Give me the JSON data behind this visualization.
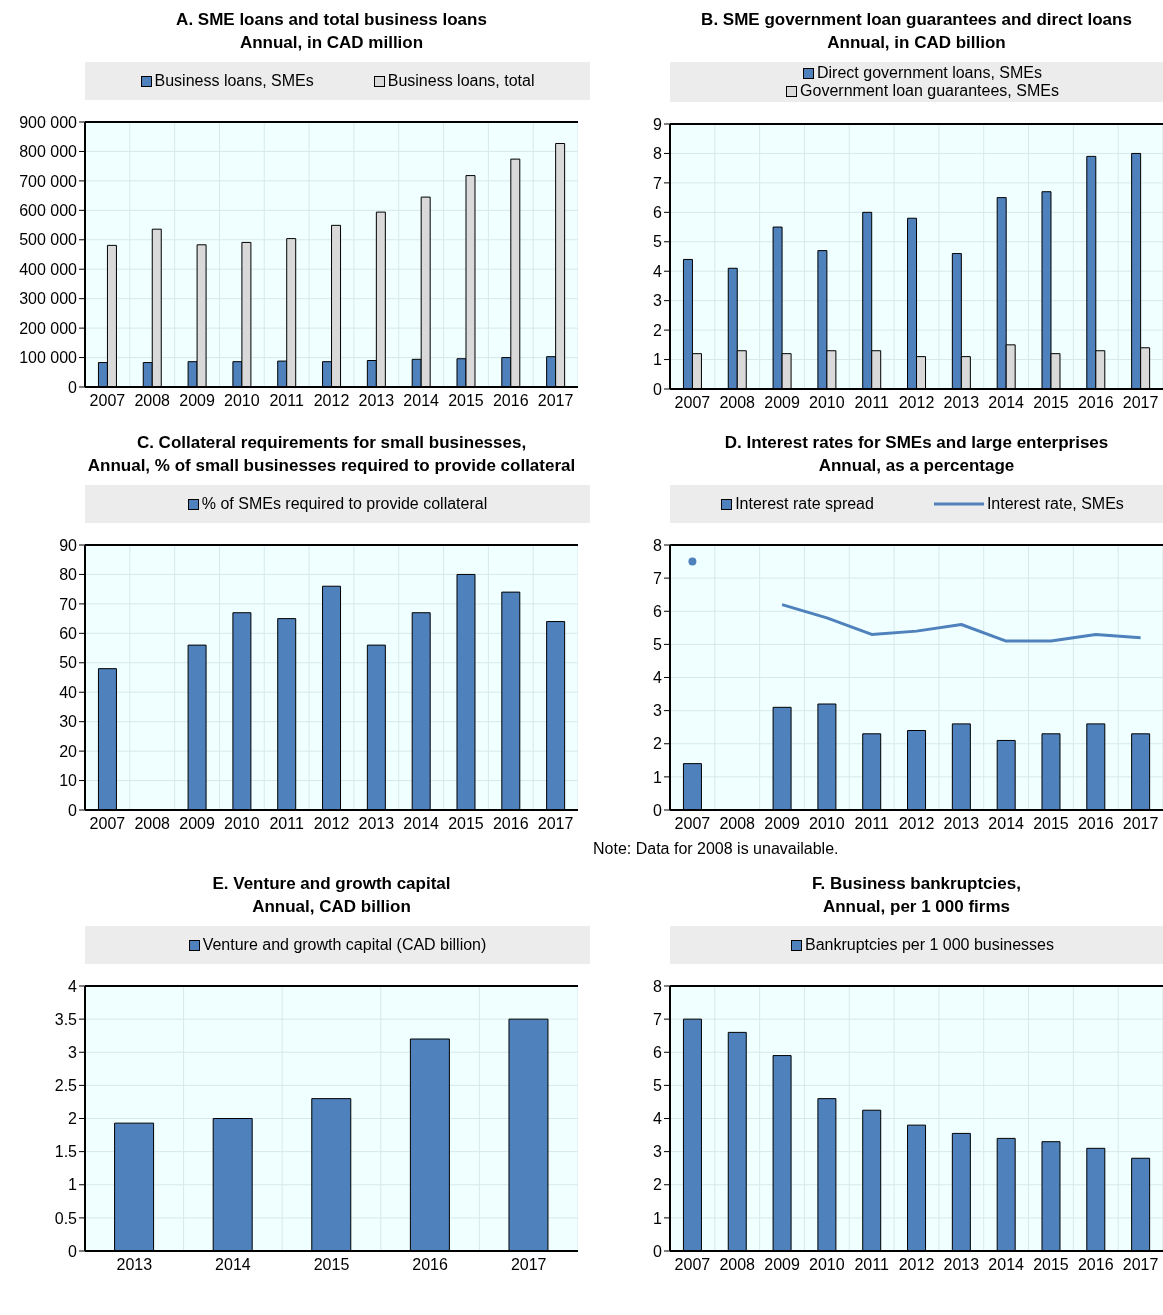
{
  "chart_data": [
    {
      "type": "bar",
      "title": "A. SME loans and total business loans",
      "subtitle": "Annual, in CAD million",
      "categories": [
        "2007",
        "2008",
        "2009",
        "2010",
        "2011",
        "2012",
        "2013",
        "2014",
        "2015",
        "2016",
        "2017"
      ],
      "series": [
        {
          "name": "Business loans, SMEs",
          "color": "#4f81bd",
          "values": [
            83000,
            83000,
            86000,
            86000,
            88000,
            86000,
            90000,
            94000,
            96000,
            100000,
            103000
          ]
        },
        {
          "name": "Business loans, total",
          "color": "#d9d9d9",
          "values": [
            481000,
            536000,
            483000,
            491000,
            504000,
            549000,
            594000,
            645000,
            718000,
            774000,
            827000
          ]
        }
      ],
      "ylim": [
        0,
        900000
      ],
      "yticks": [
        0,
        {
          "value": 100000,
          "label": "100 000"
        },
        {
          "value": 200000,
          "label": "200 000"
        },
        {
          "value": 300000,
          "label": "300 000"
        },
        {
          "value": 400000,
          "label": "400 000"
        },
        {
          "value": 500000,
          "label": "500 000"
        },
        {
          "value": 600000,
          "label": "600 000"
        },
        {
          "value": 700000,
          "label": "700 000"
        },
        {
          "value": 800000,
          "label": "800 000"
        },
        {
          "value": 900000,
          "label": "900 000"
        }
      ],
      "grid": true,
      "legend": "top"
    },
    {
      "type": "bar",
      "title": "B. SME government loan guarantees and direct loans",
      "subtitle": "Annual, in CAD billion",
      "categories": [
        "2007",
        "2008",
        "2009",
        "2010",
        "2011",
        "2012",
        "2013",
        "2014",
        "2015",
        "2016",
        "2017"
      ],
      "series": [
        {
          "name": "Direct government loans, SMEs",
          "color": "#4f81bd",
          "values": [
            4.4,
            4.1,
            5.5,
            4.7,
            6.0,
            5.8,
            4.6,
            6.5,
            6.7,
            7.9,
            8.0
          ]
        },
        {
          "name": "Government loan guarantees, SMEs",
          "color": "#d9d9d9",
          "values": [
            1.2,
            1.3,
            1.2,
            1.3,
            1.3,
            1.1,
            1.1,
            1.5,
            1.2,
            1.3,
            1.4
          ]
        }
      ],
      "ylim": [
        0,
        9
      ],
      "yticks": [
        0,
        1,
        2,
        3,
        4,
        5,
        6,
        7,
        8,
        9
      ],
      "grid": true,
      "legend": "top"
    },
    {
      "type": "bar",
      "title": "C. Collateral requirements for small businesses,",
      "subtitle": "Annual, % of small businesses required to provide collateral",
      "categories": [
        "2007",
        "2008",
        "2009",
        "2010",
        "2011",
        "2012",
        "2013",
        "2014",
        "2015",
        "2016",
        "2017"
      ],
      "series": [
        {
          "name": "% of SMEs required to provide collateral",
          "color": "#4f81bd",
          "values": [
            48,
            null,
            56,
            67,
            65,
            76,
            56,
            67,
            80,
            74,
            64
          ]
        }
      ],
      "ylim": [
        0,
        90
      ],
      "yticks": [
        0,
        10,
        20,
        30,
        40,
        50,
        60,
        70,
        80,
        90
      ],
      "grid": true,
      "legend": "top"
    },
    {
      "type": "bar",
      "title": "D. Interest rates for SMEs and large enterprises",
      "subtitle": "Annual, as a percentage",
      "categories": [
        "2007",
        "2008",
        "2009",
        "2010",
        "2011",
        "2012",
        "2013",
        "2014",
        "2015",
        "2016",
        "2017"
      ],
      "series": [
        {
          "name": "Interest rate spread",
          "color": "#4f81bd",
          "values": [
            1.4,
            null,
            3.1,
            3.2,
            2.3,
            2.4,
            2.6,
            2.1,
            2.3,
            2.6,
            2.3
          ]
        },
        {
          "name": "Interest rate, SMEs",
          "type": "line",
          "color": "#4f81bd",
          "values": [
            7.5,
            null,
            6.2,
            5.8,
            5.3,
            5.4,
            5.6,
            5.1,
            5.1,
            5.3,
            5.2
          ]
        }
      ],
      "ylim": [
        0,
        8
      ],
      "yticks": [
        0,
        1,
        2,
        3,
        4,
        5,
        6,
        7,
        8
      ],
      "grid": true,
      "legend": "top",
      "annotations": [
        "Note: Data for 2008 is unavailable."
      ]
    },
    {
      "type": "bar",
      "title": "E. Venture and growth capital",
      "subtitle": "Annual, CAD billion",
      "categories": [
        "2013",
        "2014",
        "2015",
        "2016",
        "2017"
      ],
      "series": [
        {
          "name": "Venture and growth capital (CAD billion)",
          "color": "#4f81bd",
          "values": [
            1.93,
            2.0,
            2.3,
            3.2,
            3.5
          ]
        }
      ],
      "ylim": [
        0,
        4
      ],
      "yticks": [
        0,
        0.5,
        1,
        1.5,
        2,
        2.5,
        3,
        3.5,
        4
      ],
      "grid": true,
      "legend": "top"
    },
    {
      "type": "bar",
      "title": "F. Business bankruptcies,",
      "subtitle": "Annual, per 1 000 firms",
      "categories": [
        "2007",
        "2008",
        "2009",
        "2010",
        "2011",
        "2012",
        "2013",
        "2014",
        "2015",
        "2016",
        "2017"
      ],
      "series": [
        {
          "name": "Bankruptcies per 1 000 businesses",
          "color": "#4f81bd",
          "values": [
            7.0,
            6.6,
            5.9,
            4.6,
            4.25,
            3.8,
            3.55,
            3.4,
            3.3,
            3.1,
            2.8
          ]
        }
      ],
      "ylim": [
        0,
        8
      ],
      "yticks": [
        0,
        1,
        2,
        3,
        4,
        5,
        6,
        7,
        8
      ],
      "grid": true,
      "legend": "top"
    }
  ]
}
